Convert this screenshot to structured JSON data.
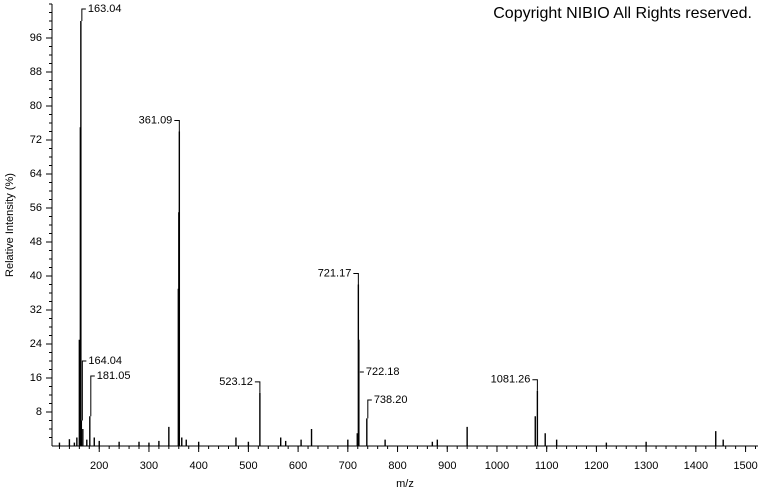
{
  "chart_data": {
    "type": "spectrum",
    "title": "Copyright NIBIO All Rights reserved.",
    "x_label": "m/z",
    "y_label": "Relative Intensity (%)",
    "color": "#000000",
    "x": [
      120,
      140,
      150,
      155,
      160,
      162.04,
      163.04,
      164.04,
      167,
      175,
      181.05,
      190,
      200,
      240,
      280,
      300,
      320,
      340,
      359.09,
      360.09,
      361.09,
      366,
      375,
      400,
      475,
      500,
      523.12,
      565,
      575,
      606,
      627,
      700,
      719,
      721.17,
      722.18,
      738.2,
      775,
      870,
      880,
      940,
      1077,
      1081.26,
      1097,
      1120,
      1220,
      1300,
      1440,
      1455
    ],
    "values": [
      0.8,
      1.6,
      0.8,
      2,
      25,
      75,
      100,
      6,
      4,
      1.5,
      7,
      2,
      1.2,
      1,
      1,
      0.8,
      1.2,
      4.5,
      37,
      55,
      74,
      2,
      1.5,
      1,
      2,
      1,
      12.5,
      2,
      1.2,
      1.5,
      4,
      1.5,
      3,
      38,
      25,
      6.5,
      1.5,
      1,
      1.5,
      4.5,
      7,
      13,
      3,
      1.5,
      0.8,
      1,
      3.5,
      1.5
    ],
    "peak_labels": [
      163.04,
      164.04,
      181.05,
      361.09,
      523.12,
      721.17,
      722.18,
      {
        "value": 738.2,
        "label": "738.20"
      },
      1081.26
    ],
    "xlim": [
      105,
      1525
    ],
    "xticks": [
      200,
      300,
      400,
      500,
      600,
      700,
      800,
      900,
      1000,
      1100,
      1200,
      1300,
      1400,
      1500
    ],
    "ylim": [
      0,
      104
    ],
    "yticks": [
      8,
      16,
      24,
      32,
      40,
      48,
      56,
      64,
      72,
      80,
      88,
      96
    ]
  }
}
